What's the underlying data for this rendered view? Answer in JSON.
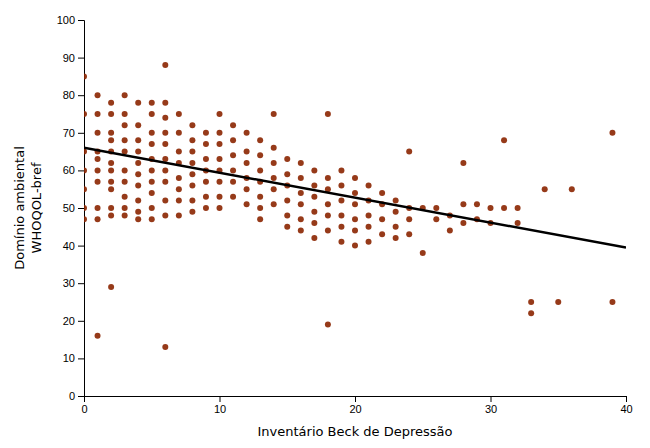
{
  "chart_data": {
    "type": "scatter",
    "xlabel": "Inventário Beck de Depressão",
    "ylabel": [
      "Domínio ambiental",
      "WHOQOL-bref"
    ],
    "xlim": [
      0,
      40
    ],
    "ylim": [
      0,
      100
    ],
    "xticks": [
      0,
      10,
      20,
      30,
      40
    ],
    "yticks": [
      0,
      10,
      20,
      30,
      40,
      50,
      60,
      70,
      80,
      90,
      100
    ],
    "grid": false,
    "series": [
      {
        "type": "scatter",
        "color": "#8B2500",
        "x": [
          0,
          0,
          0,
          0,
          0,
          0,
          0,
          1,
          1,
          1,
          1,
          1,
          1,
          1,
          1,
          1,
          1,
          2,
          2,
          2,
          2,
          2,
          2,
          2,
          2,
          2,
          2,
          2,
          2,
          3,
          3,
          3,
          3,
          3,
          3,
          3,
          3,
          3,
          3,
          4,
          4,
          4,
          4,
          4,
          4,
          4,
          4,
          4,
          4,
          5,
          5,
          5,
          5,
          5,
          5,
          5,
          5,
          5,
          5,
          6,
          6,
          6,
          6,
          6,
          6,
          6,
          6,
          6,
          6,
          6,
          7,
          7,
          7,
          7,
          7,
          7,
          7,
          7,
          8,
          8,
          8,
          8,
          8,
          8,
          8,
          8,
          9,
          9,
          9,
          9,
          9,
          9,
          9,
          10,
          10,
          10,
          10,
          10,
          10,
          10,
          10,
          11,
          11,
          11,
          11,
          11,
          11,
          12,
          12,
          12,
          12,
          12,
          12,
          13,
          13,
          13,
          13,
          13,
          13,
          13,
          14,
          14,
          14,
          14,
          14,
          14,
          15,
          15,
          15,
          15,
          15,
          15,
          16,
          16,
          16,
          16,
          16,
          16,
          17,
          17,
          17,
          17,
          17,
          17,
          18,
          18,
          18,
          18,
          18,
          18,
          18,
          19,
          19,
          19,
          19,
          19,
          19,
          20,
          20,
          20,
          20,
          20,
          20,
          21,
          21,
          21,
          21,
          21,
          22,
          22,
          22,
          22,
          23,
          23,
          23,
          23,
          24,
          24,
          24,
          24,
          25,
          25,
          26,
          26,
          27,
          27,
          28,
          28,
          28,
          29,
          29,
          30,
          30,
          31,
          31,
          32,
          32,
          33,
          33,
          34,
          35,
          36,
          39,
          39
        ],
        "values": [
          85,
          75,
          65,
          60,
          55,
          50,
          47,
          80,
          75,
          70,
          65,
          63,
          60,
          57,
          50,
          47,
          16,
          78,
          75,
          70,
          68,
          65,
          62,
          60,
          57,
          55,
          50,
          48,
          29,
          80,
          75,
          72,
          68,
          65,
          60,
          57,
          53,
          50,
          48,
          78,
          72,
          68,
          65,
          62,
          59,
          56,
          52,
          49,
          47,
          78,
          75,
          70,
          67,
          63,
          60,
          57,
          54,
          50,
          47,
          88,
          78,
          74,
          70,
          67,
          63,
          60,
          57,
          52,
          48,
          13,
          75,
          70,
          65,
          62,
          58,
          55,
          52,
          48,
          72,
          68,
          65,
          62,
          59,
          56,
          52,
          49,
          70,
          67,
          63,
          60,
          57,
          53,
          50,
          75,
          70,
          67,
          63,
          60,
          57,
          53,
          50,
          72,
          68,
          64,
          60,
          57,
          53,
          70,
          65,
          62,
          58,
          55,
          51,
          68,
          64,
          60,
          57,
          53,
          50,
          47,
          75,
          66,
          62,
          58,
          55,
          51,
          63,
          59,
          56,
          52,
          48,
          45,
          62,
          58,
          54,
          51,
          47,
          44,
          60,
          56,
          53,
          49,
          46,
          42,
          75,
          58,
          55,
          51,
          48,
          44,
          19,
          60,
          56,
          52,
          48,
          45,
          41,
          58,
          54,
          51,
          47,
          44,
          40,
          56,
          52,
          48,
          45,
          41,
          54,
          51,
          47,
          43,
          52,
          49,
          45,
          42,
          65,
          50,
          47,
          43,
          50,
          38,
          50,
          47,
          48,
          44,
          62,
          51,
          46,
          51,
          47,
          50,
          46,
          68,
          50,
          50,
          46,
          25,
          22,
          55,
          25,
          55,
          25,
          70
        ]
      },
      {
        "type": "line",
        "color": "black",
        "x": [
          0,
          40
        ],
        "values": [
          66.0,
          39.5
        ]
      }
    ]
  }
}
